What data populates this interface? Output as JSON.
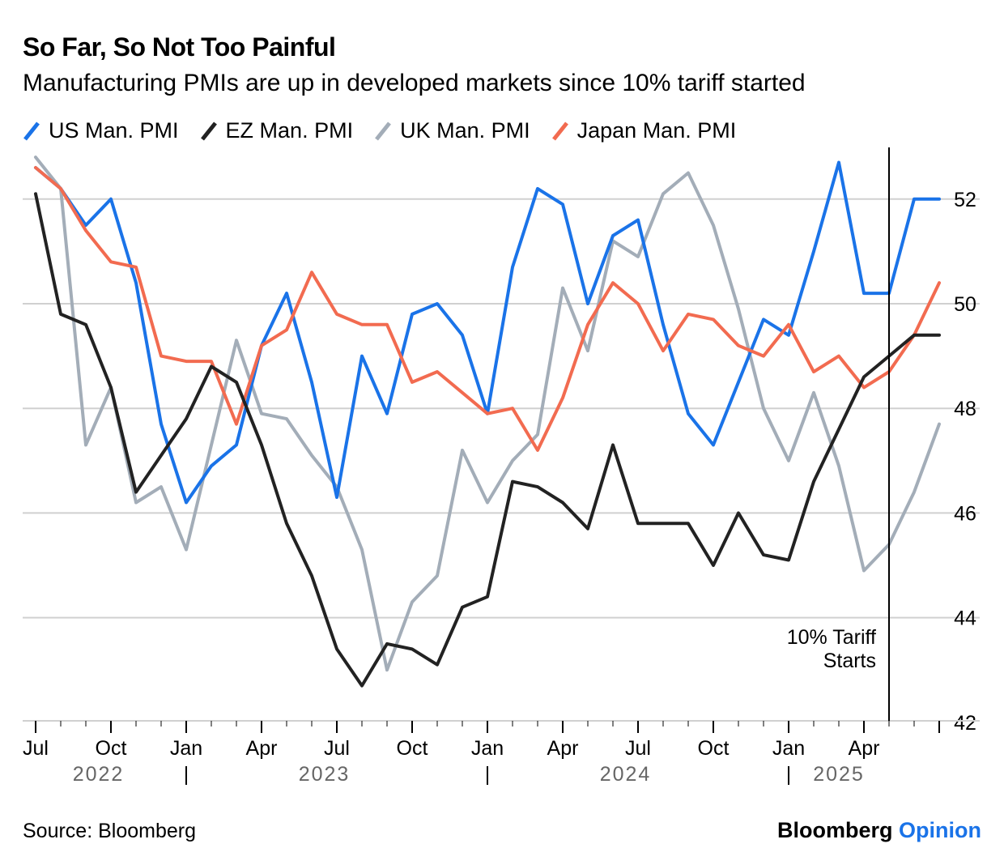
{
  "title": "So Far, So Not Too Painful",
  "subtitle": "Manufacturing PMIs are up in developed markets since 10% tariff started",
  "legend": [
    {
      "label": "US Man. PMI",
      "color": "#1a73e8"
    },
    {
      "label": "EZ Man. PMI",
      "color": "#222222"
    },
    {
      "label": "UK Man. PMI",
      "color": "#a3adb8"
    },
    {
      "label": "Japan Man. PMI",
      "color": "#f26b50"
    }
  ],
  "source": "Source: Bloomberg",
  "brand": {
    "part1": "Bloomberg",
    "part2": "Opinion"
  },
  "chart_data": {
    "type": "line",
    "x": [
      "2022-07",
      "2022-08",
      "2022-09",
      "2022-10",
      "2022-11",
      "2022-12",
      "2023-01",
      "2023-02",
      "2023-03",
      "2023-04",
      "2023-05",
      "2023-06",
      "2023-07",
      "2023-08",
      "2023-09",
      "2023-10",
      "2023-11",
      "2023-12",
      "2024-01",
      "2024-02",
      "2024-03",
      "2024-04",
      "2024-05",
      "2024-06",
      "2024-07",
      "2024-08",
      "2024-09",
      "2024-10",
      "2024-11",
      "2024-12",
      "2025-01",
      "2025-02",
      "2025-03",
      "2025-04",
      "2025-05",
      "2025-06",
      "2025-07"
    ],
    "series": [
      {
        "name": "US Man. PMI",
        "color": "#1a73e8",
        "values": [
          52.6,
          52.2,
          51.5,
          52.0,
          50.4,
          47.7,
          46.2,
          46.9,
          47.3,
          49.2,
          50.2,
          48.5,
          46.3,
          49.0,
          47.9,
          49.8,
          50.0,
          49.4,
          47.9,
          50.7,
          52.2,
          51.9,
          50.0,
          51.3,
          51.6,
          49.6,
          47.9,
          47.3,
          48.5,
          49.7,
          49.4,
          51.0,
          52.7,
          50.2,
          50.2,
          52.0,
          52.0
        ]
      },
      {
        "name": "EZ Man. PMI",
        "color": "#222222",
        "values": [
          52.1,
          49.8,
          49.6,
          48.4,
          46.4,
          47.1,
          47.8,
          48.8,
          48.5,
          47.3,
          45.8,
          44.8,
          43.4,
          42.7,
          43.5,
          43.4,
          43.1,
          44.2,
          44.4,
          46.6,
          46.5,
          46.2,
          45.7,
          47.3,
          45.8,
          45.8,
          45.8,
          45.0,
          46.0,
          45.2,
          45.1,
          46.6,
          47.6,
          48.6,
          49.0,
          49.4,
          49.4
        ]
      },
      {
        "name": "UK Man. PMI",
        "color": "#a3adb8",
        "values": [
          52.8,
          52.2,
          47.3,
          48.4,
          46.2,
          46.5,
          45.3,
          47.3,
          49.3,
          47.9,
          47.8,
          47.1,
          46.5,
          45.3,
          43.0,
          44.3,
          44.8,
          47.2,
          46.2,
          47.0,
          47.5,
          50.3,
          49.1,
          51.2,
          50.9,
          52.1,
          52.5,
          51.5,
          49.9,
          48.0,
          47.0,
          48.3,
          46.9,
          44.9,
          45.4,
          46.4,
          47.7
        ]
      },
      {
        "name": "Japan Man. PMI",
        "color": "#f26b50",
        "values": [
          52.6,
          52.2,
          51.4,
          50.8,
          50.7,
          49.0,
          48.9,
          48.9,
          47.7,
          49.2,
          49.5,
          50.6,
          49.8,
          49.6,
          49.6,
          48.5,
          48.7,
          48.3,
          47.9,
          48.0,
          47.2,
          48.2,
          49.6,
          50.4,
          50.0,
          49.1,
          49.8,
          49.7,
          49.2,
          49.0,
          49.6,
          48.7,
          49.0,
          48.4,
          48.7,
          49.4,
          50.4
        ]
      }
    ],
    "x_tick_labels": [
      "Jul",
      "Oct",
      "Jan",
      "Apr",
      "Jul",
      "Oct",
      "Jan",
      "Apr",
      "Jul",
      "Oct",
      "Jan",
      "Apr"
    ],
    "year_labels": [
      "2022",
      "2023",
      "2024",
      "2025"
    ],
    "y_ticks": [
      52,
      50,
      48,
      46,
      44,
      42
    ],
    "ylim": [
      42,
      53
    ],
    "grid": true,
    "y_axis_side": "right",
    "annotation": {
      "line1": "10% Tariff",
      "line2": "Starts",
      "x": "2025-04"
    }
  }
}
